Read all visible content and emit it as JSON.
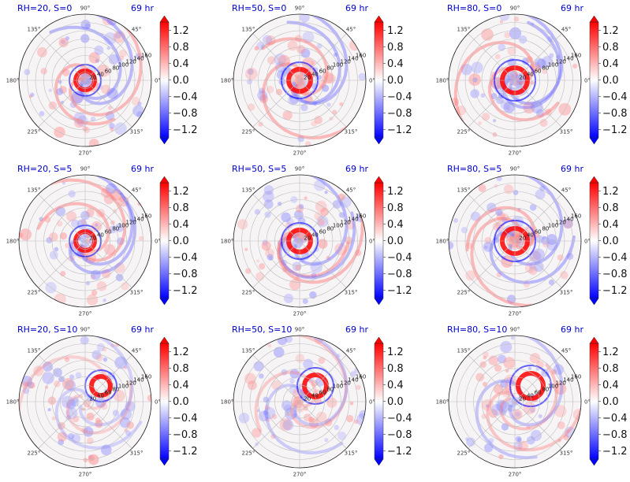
{
  "chart_data": {
    "type": "heatmap",
    "projection": "polar",
    "time_label": "69 hr",
    "angle_ticks": [
      "0°",
      "45°",
      "90°",
      "135°",
      "180°",
      "225°",
      "270°",
      "315°"
    ],
    "radial_ticks": [
      "20",
      "40",
      "60",
      "80",
      "100",
      "120",
      "140",
      "160"
    ],
    "rlim": [
      0,
      160
    ],
    "colorbar": {
      "ticks": [
        "1.2",
        "0.8",
        "0.4",
        "0.0",
        "−0.4",
        "−0.8",
        "−1.2"
      ],
      "range": [
        -1.4,
        1.4
      ],
      "colormap": "bwr"
    },
    "grid": true,
    "panels": [
      {
        "title": "RH=20, S=0",
        "time": "69 hr"
      },
      {
        "title": "RH=50, S=0",
        "time": "69 hr"
      },
      {
        "title": "RH=80, S=0",
        "time": "69 hr"
      },
      {
        "title": "RH=20, S=5",
        "time": "69 hr"
      },
      {
        "title": "RH=50, S=5",
        "time": "69 hr"
      },
      {
        "title": "RH=80, S=5",
        "time": "69 hr"
      },
      {
        "title": "RH=20, S=10",
        "time": "69 hr"
      },
      {
        "title": "RH=50, S=10",
        "time": "69 hr"
      },
      {
        "title": "RH=80, S=10",
        "time": "69 hr"
      }
    ]
  },
  "colors": {
    "positive": "#ff0000",
    "negative": "#0000ff",
    "neutral": "#ffffff",
    "title": "#0000cc"
  }
}
